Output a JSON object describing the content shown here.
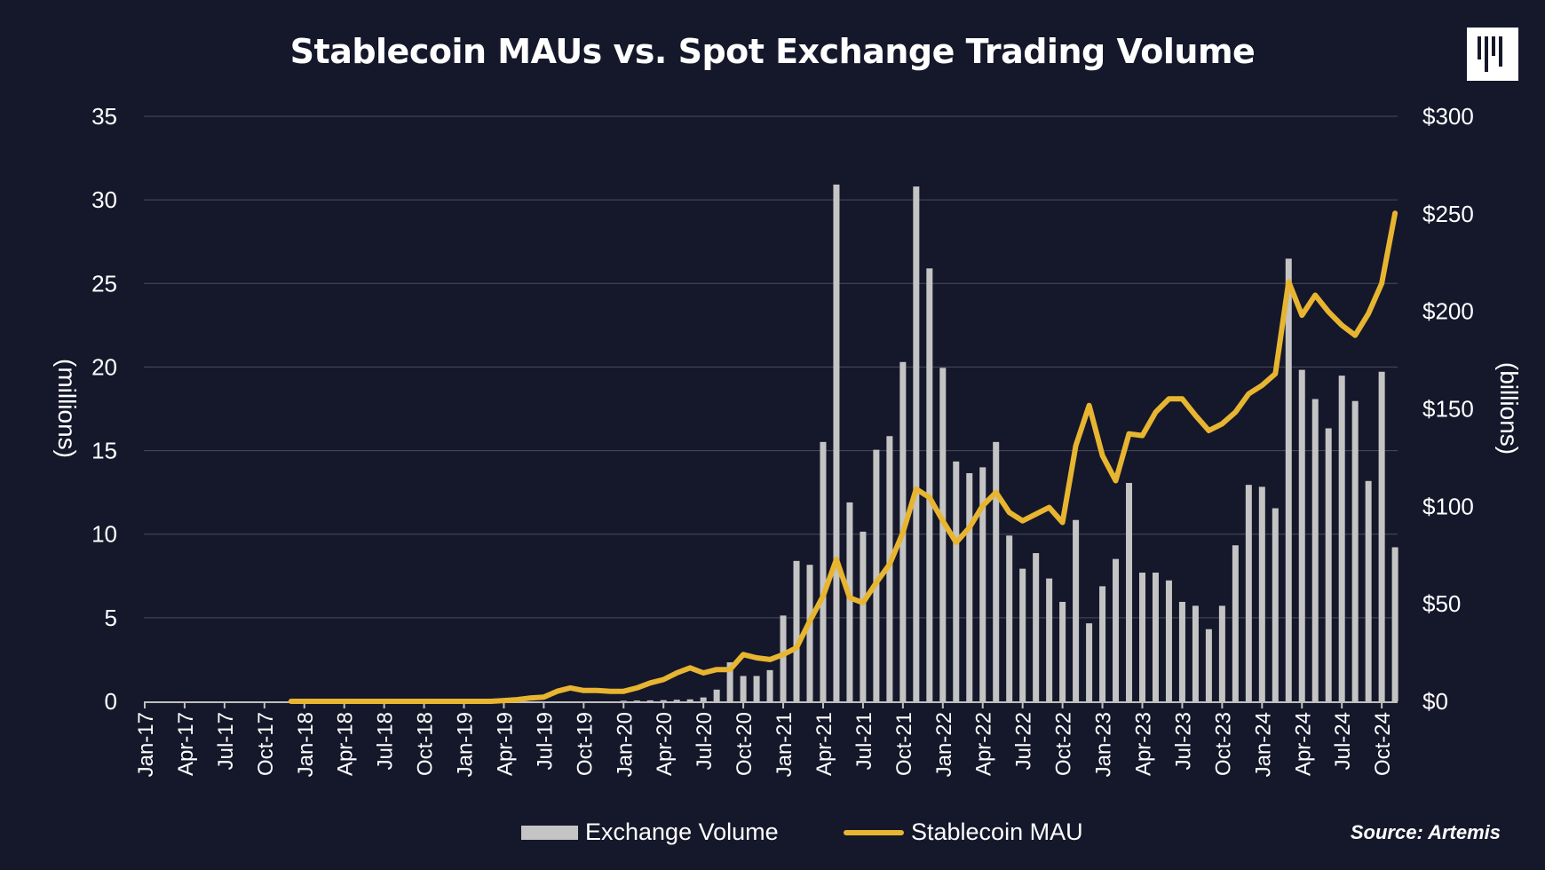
{
  "chart_data": {
    "type": "bar+line",
    "title": "Stablecoin MAUs vs. Spot Exchange Trading Volume",
    "ylabel_left": "(millions)",
    "ylabel_right": "(billions)",
    "ylim_left": [
      0,
      35
    ],
    "ylim_right": [
      0,
      300
    ],
    "yticks_left": [
      "0",
      "5",
      "10",
      "15",
      "20",
      "25",
      "30",
      "35"
    ],
    "yticks_right": [
      "$0",
      "$50",
      "$100",
      "$150",
      "$200",
      "$250",
      "$300"
    ],
    "grid": true,
    "legend_position": "bottom",
    "categories": [
      "Jan-17",
      "Feb-17",
      "Mar-17",
      "Apr-17",
      "May-17",
      "Jun-17",
      "Jul-17",
      "Aug-17",
      "Sep-17",
      "Oct-17",
      "Nov-17",
      "Dec-17",
      "Jan-18",
      "Feb-18",
      "Mar-18",
      "Apr-18",
      "May-18",
      "Jun-18",
      "Jul-18",
      "Aug-18",
      "Sep-18",
      "Oct-18",
      "Nov-18",
      "Dec-18",
      "Jan-19",
      "Feb-19",
      "Mar-19",
      "Apr-19",
      "May-19",
      "Jun-19",
      "Jul-19",
      "Aug-19",
      "Sep-19",
      "Oct-19",
      "Nov-19",
      "Dec-19",
      "Jan-20",
      "Feb-20",
      "Mar-20",
      "Apr-20",
      "May-20",
      "Jun-20",
      "Jul-20",
      "Aug-20",
      "Sep-20",
      "Oct-20",
      "Nov-20",
      "Dec-20",
      "Jan-21",
      "Feb-21",
      "Mar-21",
      "Apr-21",
      "May-21",
      "Jun-21",
      "Jul-21",
      "Aug-21",
      "Sep-21",
      "Oct-21",
      "Nov-21",
      "Dec-21",
      "Jan-22",
      "Feb-22",
      "Mar-22",
      "Apr-22",
      "May-22",
      "Jun-22",
      "Jul-22",
      "Aug-22",
      "Sep-22",
      "Oct-22",
      "Nov-22",
      "Dec-22",
      "Jan-23",
      "Feb-23",
      "Mar-23",
      "Apr-23",
      "May-23",
      "Jun-23",
      "Jul-23",
      "Aug-23",
      "Sep-23",
      "Oct-23",
      "Nov-23",
      "Dec-23",
      "Jan-24",
      "Feb-24",
      "Mar-24",
      "Apr-24",
      "May-24",
      "Jun-24",
      "Jul-24",
      "Aug-24",
      "Sep-24",
      "Oct-24",
      "Nov-24"
    ],
    "xtick_labels": [
      "Jan-17",
      "Apr-17",
      "Jul-17",
      "Oct-17",
      "Jan-18",
      "Apr-18",
      "Jul-18",
      "Oct-18",
      "Jan-19",
      "Apr-19",
      "Jul-19",
      "Oct-19",
      "Jan-20",
      "Apr-20",
      "Jul-20",
      "Oct-20",
      "Jan-21",
      "Apr-21",
      "Jul-21",
      "Oct-21",
      "Jan-22",
      "Apr-22",
      "Jul-22",
      "Oct-22",
      "Jan-23",
      "Apr-23",
      "Jul-23",
      "Oct-23",
      "Jan-24",
      "Apr-24",
      "Jul-24",
      "Oct-24"
    ],
    "series": [
      {
        "name": "Exchange Volume",
        "type": "bar",
        "axis": "right",
        "color": "#c4c4c4",
        "values": [
          0,
          0,
          0,
          0,
          0,
          0,
          0,
          0,
          0,
          0,
          0,
          0,
          0,
          0,
          0,
          0,
          0,
          0,
          0,
          0,
          0,
          0,
          0,
          0,
          0,
          0,
          0,
          0,
          0,
          0,
          0,
          0,
          0,
          0,
          0,
          0,
          0.3,
          0.4,
          0.5,
          0.6,
          0.8,
          1,
          2,
          6,
          20,
          13,
          13,
          16,
          44,
          72,
          70,
          133,
          265,
          102,
          87,
          129,
          136,
          174,
          264,
          222,
          171,
          123,
          117,
          120,
          133,
          85,
          68,
          76,
          63,
          51,
          93,
          40,
          59,
          73,
          112,
          66,
          66,
          62,
          51,
          49,
          37,
          49,
          80,
          111,
          110,
          99,
          227,
          170,
          155,
          140,
          167,
          154,
          113,
          169,
          79
        ]
      },
      {
        "name": "Stablecoin MAU",
        "type": "line",
        "axis": "left",
        "color": "#e8b531",
        "values": [
          null,
          null,
          null,
          null,
          null,
          null,
          null,
          null,
          null,
          null,
          null,
          0,
          0,
          0,
          0,
          0,
          0,
          0,
          0,
          0,
          0,
          0,
          0,
          0,
          0,
          0,
          0,
          0.05,
          0.1,
          0.2,
          0.25,
          0.6,
          0.8,
          0.65,
          0.65,
          0.6,
          0.6,
          0.8,
          1.1,
          1.3,
          1.7,
          2.0,
          1.7,
          1.9,
          1.9,
          2.8,
          2.6,
          2.5,
          2.8,
          3.2,
          4.8,
          6.3,
          8.5,
          6.2,
          5.9,
          7.1,
          8.2,
          10.1,
          12.7,
          12.2,
          10.8,
          9.5,
          10.4,
          11.7,
          12.5,
          11.3,
          10.8,
          11.2,
          11.6,
          10.7,
          15.3,
          17.7,
          14.7,
          13.2,
          16.0,
          15.9,
          17.3,
          18.1,
          18.1,
          17.1,
          16.2,
          16.6,
          17.3,
          18.4,
          18.9,
          19.6,
          25.1,
          23.1,
          24.3,
          23.3,
          22.5,
          21.9,
          23.2,
          25.0,
          29.2
        ]
      }
    ],
    "source": "Source: Artemis"
  },
  "colors": {
    "background": "#15182b",
    "grid": "#4a4c58",
    "bar": "#c4c4c4",
    "line": "#e8b531"
  }
}
